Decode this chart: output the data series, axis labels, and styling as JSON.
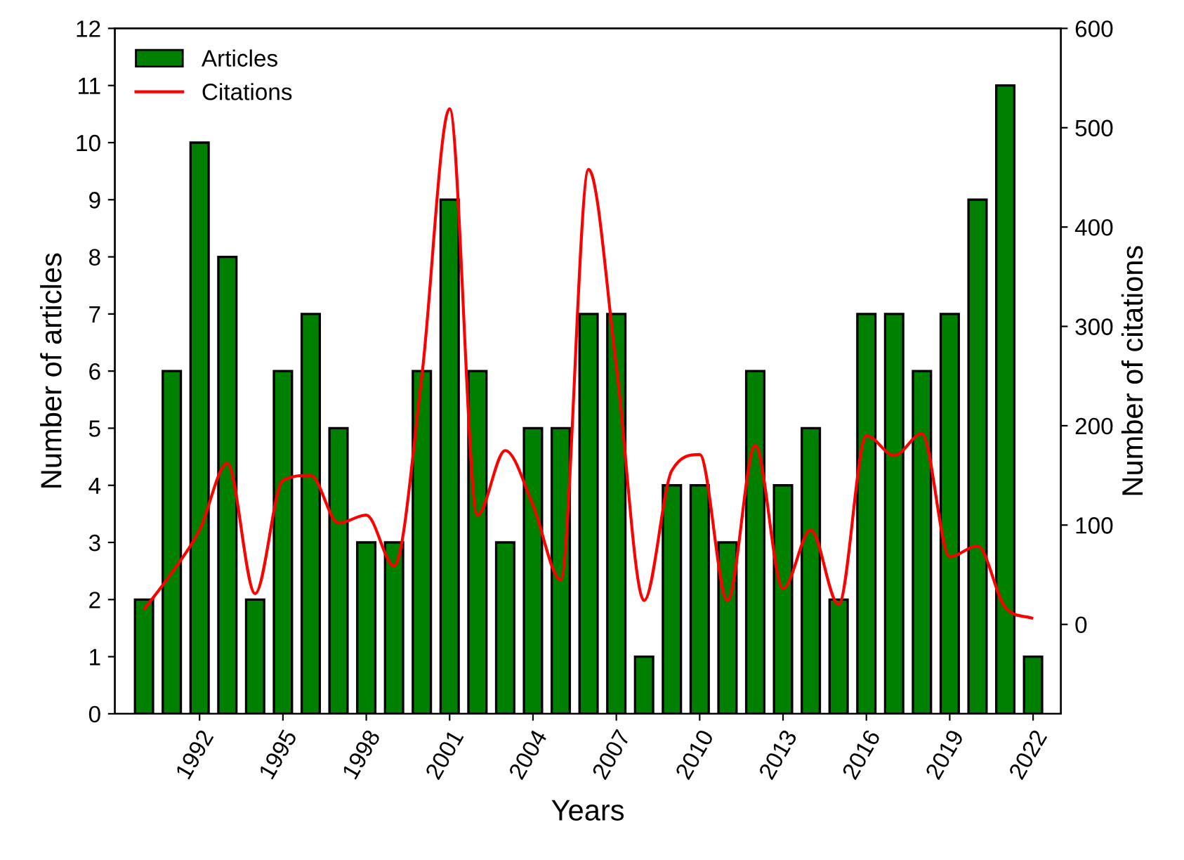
{
  "chart_data": {
    "type": "bar",
    "xlabel": "Years",
    "ylabel": "Number of articles",
    "y2label": "Number of citations",
    "categories": [
      null,
      null,
      "1992",
      null,
      null,
      "1995",
      null,
      null,
      "1998",
      null,
      null,
      "2001",
      null,
      null,
      "2004",
      null,
      null,
      "2007",
      null,
      null,
      "2010",
      null,
      null,
      "2013",
      null,
      null,
      "2016",
      null,
      null,
      "2019",
      null,
      null,
      "2022"
    ],
    "series": [
      {
        "name": "Articles",
        "color": "#008000",
        "values": [
          2,
          6,
          10,
          8,
          2,
          6,
          7,
          5,
          3,
          3,
          6,
          9,
          6,
          3,
          5,
          5,
          7,
          7,
          1,
          4,
          4,
          3,
          6,
          4,
          5,
          2,
          7,
          7,
          6,
          7,
          9,
          11,
          1
        ]
      },
      {
        "name": "Citations",
        "type": "line",
        "axis": "y2",
        "color": "#ff0000",
        "values": [
          15,
          52,
          95,
          162,
          31,
          145,
          150,
          102,
          110,
          59,
          250,
          519,
          110,
          175,
          120,
          45,
          458,
          260,
          24,
          155,
          171,
          24,
          180,
          36,
          95,
          20,
          190,
          170,
          192,
          68,
          79,
          17,
          6
        ]
      }
    ],
    "ylim": [
      0,
      12
    ],
    "yticks": [
      0,
      1,
      2,
      3,
      4,
      5,
      6,
      7,
      8,
      9,
      10,
      11,
      12
    ],
    "y2lim": [
      -90,
      600
    ],
    "y2ticks": [
      0,
      100,
      200,
      300,
      400,
      500,
      600
    ],
    "legend": "top left",
    "grid": false
  }
}
